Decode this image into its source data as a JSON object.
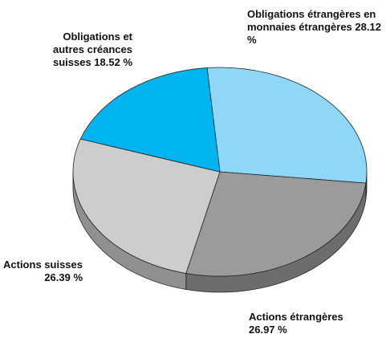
{
  "chart_data": {
    "type": "pie3d",
    "categories": [
      "Obligations étrangères en monnaies étrangères",
      "Actions étrangères",
      "Actions suisses",
      "Obligations et autres créances suisses"
    ],
    "values": [
      28.12,
      26.97,
      26.39,
      18.52
    ],
    "value_labels": [
      "28.12 %",
      "26.97 %",
      "26.39 %",
      "18.52 %"
    ],
    "colors": [
      "#8fd7f7",
      "#9b9b9b",
      "#cdcdcd",
      "#00b4ef"
    ]
  }
}
